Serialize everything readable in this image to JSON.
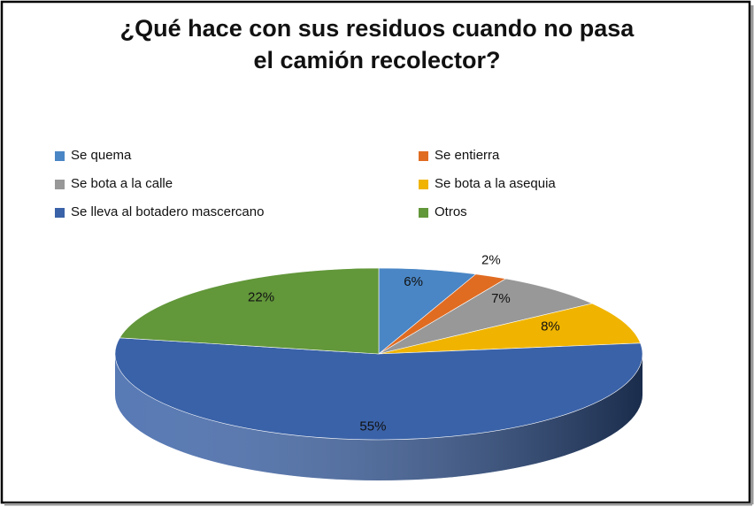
{
  "chart_data": {
    "type": "pie3d",
    "title": "¿Qué hace con sus residuos cuando no pasa el camión recolector?",
    "categories": [
      "Se quema",
      "Se entierra",
      "Se bota a la calle",
      "Se bota a la asequia",
      "Se lleva al botadero mascercano",
      "Otros"
    ],
    "values": [
      6,
      2,
      7,
      8,
      55,
      22
    ],
    "value_labels": [
      "6%",
      "2%",
      "7%",
      "8%",
      "55%",
      "22%"
    ],
    "colors": [
      "#4a86c5",
      "#e06c22",
      "#989898",
      "#f0b400",
      "#3a62a8",
      "#62973a"
    ]
  }
}
